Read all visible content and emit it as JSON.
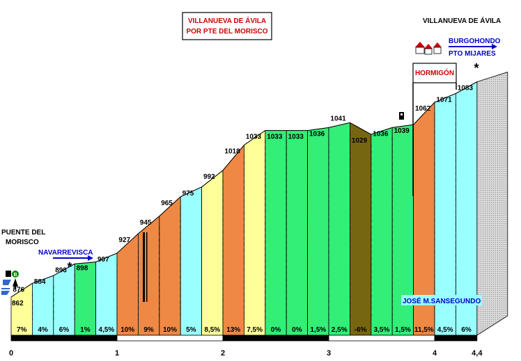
{
  "title": {
    "line1": "VILLANUEVA DE ÁVILA",
    "line2": "POR PTE DEL MORISCO"
  },
  "labels": {
    "start_place": "PUENTE DEL",
    "start_place2": "MORISCO",
    "end_place": "VILLANUEVA DE ÁVILA",
    "direction_left": "NAVARREVISCA",
    "direction_right1": "BURGOHONDO",
    "direction_right2": "PTO MIJARES",
    "surface": "HORMIGÓN",
    "memorial": "JOSÉ M.SANSEGUNDO"
  },
  "colors": {
    "yellow": "#ffff99",
    "cyan": "#99ffff",
    "green": "#33ee77",
    "orange": "#ee8844",
    "olive": "#776611",
    "grey": "#cccccc",
    "accent_red": "#cc0000",
    "accent_blue": "#0000cc"
  },
  "chart_data": {
    "type": "area",
    "x_unit": "km",
    "y_unit": "m",
    "xlim": [
      0,
      4.4
    ],
    "ylim": [
      840,
      1090
    ],
    "x_ticks": [
      "0",
      "1",
      "2",
      "3",
      "4",
      "4,4"
    ],
    "x_tick_values": [
      0,
      1,
      2,
      3,
      4,
      4.4
    ],
    "start_elevation": 862,
    "segments": [
      {
        "x0": 0.0,
        "x1": 0.2,
        "elev": 876,
        "grade": "7%",
        "color": "yellow"
      },
      {
        "x0": 0.2,
        "x1": 0.4,
        "elev": 884,
        "grade": "4%",
        "color": "cyan"
      },
      {
        "x0": 0.4,
        "x1": 0.6,
        "elev": 896,
        "grade": "6%",
        "color": "cyan"
      },
      {
        "x0": 0.6,
        "x1": 0.8,
        "elev": 898,
        "grade": "1%",
        "color": "green"
      },
      {
        "x0": 0.8,
        "x1": 1.0,
        "elev": 907,
        "grade": "4,5%",
        "color": "cyan"
      },
      {
        "x0": 1.0,
        "x1": 1.2,
        "elev": 927,
        "grade": "10%",
        "color": "orange"
      },
      {
        "x0": 1.2,
        "x1": 1.4,
        "elev": 945,
        "grade": "9%",
        "color": "orange"
      },
      {
        "x0": 1.4,
        "x1": 1.6,
        "elev": 965,
        "grade": "10%",
        "color": "orange"
      },
      {
        "x0": 1.6,
        "x1": 1.8,
        "elev": 975,
        "grade": "5%",
        "color": "cyan"
      },
      {
        "x0": 1.8,
        "x1": 2.0,
        "elev": 992,
        "grade": "8,5%",
        "color": "yellow"
      },
      {
        "x0": 2.0,
        "x1": 2.2,
        "elev": 1018,
        "grade": "13%",
        "color": "orange"
      },
      {
        "x0": 2.2,
        "x1": 2.4,
        "elev": 1033,
        "grade": "7,5%",
        "color": "yellow"
      },
      {
        "x0": 2.4,
        "x1": 2.6,
        "elev": 1033,
        "grade": "0%",
        "color": "green"
      },
      {
        "x0": 2.6,
        "x1": 2.8,
        "elev": 1033,
        "grade": "0%",
        "color": "green"
      },
      {
        "x0": 2.8,
        "x1": 3.0,
        "elev": 1036,
        "grade": "1,5%",
        "color": "green"
      },
      {
        "x0": 3.0,
        "x1": 3.2,
        "elev": 1041,
        "grade": "2,5%",
        "color": "green"
      },
      {
        "x0": 3.2,
        "x1": 3.4,
        "elev": 1029,
        "grade": "-6%",
        "color": "olive"
      },
      {
        "x0": 3.4,
        "x1": 3.6,
        "elev": 1036,
        "grade": "3,5%",
        "color": "green"
      },
      {
        "x0": 3.6,
        "x1": 3.8,
        "elev": 1039,
        "grade": "1,5%",
        "color": "green"
      },
      {
        "x0": 3.8,
        "x1": 4.0,
        "elev": 1062,
        "grade": "11,5%",
        "color": "orange"
      },
      {
        "x0": 4.0,
        "x1": 4.2,
        "elev": 1071,
        "grade": "4,5%",
        "color": "cyan"
      },
      {
        "x0": 4.2,
        "x1": 4.4,
        "elev": 1083,
        "grade": "6%",
        "color": "cyan"
      }
    ]
  }
}
